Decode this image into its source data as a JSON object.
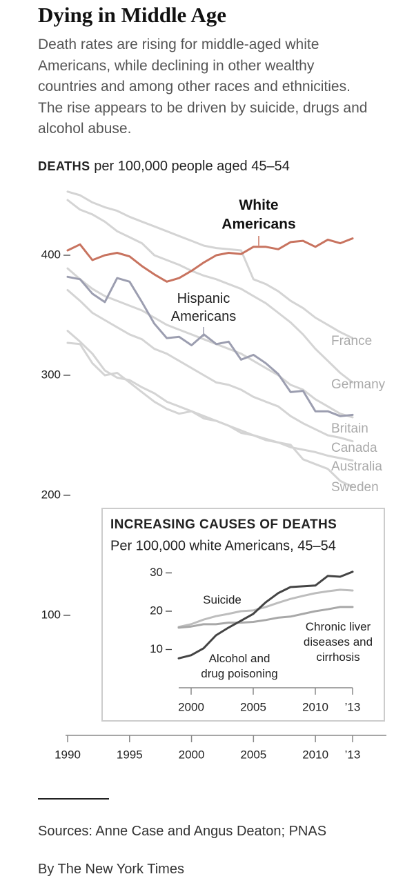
{
  "chart_data": [
    {
      "type": "line",
      "title": "Dying in Middle Age",
      "subtitle": "Death rates are rising for middle-aged white Americans, while declining in other wealthy countries and among other races and ethnicities. The rise appears to be driven by suicide, drugs and alcohol abuse.",
      "unit_label": "DEATHS",
      "unit_desc": "per 100,000 people aged 45–54",
      "x": [
        1990,
        1991,
        1992,
        1993,
        1994,
        1995,
        1996,
        1997,
        1998,
        1999,
        2000,
        2001,
        2002,
        2003,
        2004,
        2005,
        2006,
        2007,
        2008,
        2009,
        2010,
        2011,
        2012,
        2013
      ],
      "xlim": [
        1990,
        2013
      ],
      "xticks": [
        1990,
        1995,
        2000,
        2005,
        2010,
        {
          "value": 2013,
          "label": "’13"
        }
      ],
      "ylim": [
        0,
        460
      ],
      "yticks": [
        100,
        200,
        300,
        400
      ],
      "series": [
        {
          "name": "France",
          "color": "#d4d4d4",
          "values": [
            453,
            450,
            444,
            440,
            437,
            432,
            428,
            424,
            420,
            416,
            412,
            408,
            406,
            405,
            404,
            380,
            376,
            370,
            362,
            356,
            348,
            342,
            336,
            331
          ]
        },
        {
          "name": "Germany",
          "color": "#d4d4d4",
          "values": [
            446,
            438,
            434,
            428,
            420,
            415,
            410,
            400,
            396,
            392,
            387,
            383,
            380,
            376,
            372,
            366,
            360,
            352,
            344,
            334,
            322,
            312,
            302,
            294
          ]
        },
        {
          "name": "Britain",
          "color": "#d4d4d4",
          "values": [
            389,
            380,
            372,
            366,
            362,
            358,
            354,
            348,
            342,
            338,
            334,
            330,
            326,
            322,
            318,
            312,
            306,
            300,
            292,
            288,
            280,
            274,
            268,
            265
          ]
        },
        {
          "name": "Canada",
          "color": "#d4d4d4",
          "values": [
            371,
            362,
            352,
            346,
            340,
            334,
            330,
            322,
            318,
            312,
            306,
            300,
            294,
            292,
            288,
            282,
            278,
            274,
            266,
            260,
            255,
            250,
            248,
            245
          ]
        },
        {
          "name": "Australia",
          "color": "#d4d4d4",
          "values": [
            337,
            328,
            318,
            304,
            298,
            296,
            290,
            285,
            278,
            274,
            270,
            266,
            262,
            258,
            254,
            250,
            246,
            244,
            240,
            238,
            236,
            233,
            231,
            229
          ]
        },
        {
          "name": "Sweden",
          "color": "#d4d4d4",
          "values": [
            327,
            326,
            310,
            300,
            302,
            294,
            286,
            278,
            272,
            268,
            270,
            264,
            262,
            258,
            252,
            250,
            247,
            244,
            242,
            230,
            226,
            222,
            212,
            207
          ]
        },
        {
          "name": "Hispanic\nAmericans",
          "color": "#9c9eb0",
          "values": [
            382,
            380,
            368,
            361,
            381,
            378,
            361,
            343,
            331,
            332,
            325,
            334,
            326,
            328,
            313,
            317,
            310,
            301,
            286,
            287,
            270,
            270,
            266,
            267
          ]
        },
        {
          "name": "White\nAmericans",
          "color": "#c8735f",
          "values": [
            404,
            409,
            396,
            400,
            402,
            399,
            391,
            384,
            378,
            381,
            387,
            394,
            400,
            402,
            401,
            407,
            407,
            405,
            411,
            412,
            407,
            413,
            410,
            414
          ]
        }
      ]
    },
    {
      "type": "line",
      "title": "INCREASING CAUSES OF DEATHS",
      "subtitle": "Per 100,000 white Americans, 45–54",
      "x": [
        1999,
        2000,
        2001,
        2002,
        2003,
        2004,
        2005,
        2006,
        2007,
        2008,
        2009,
        2010,
        2011,
        2012,
        2013
      ],
      "xlim": [
        1999,
        2013
      ],
      "xticks": [
        2000,
        2005,
        2010,
        {
          "value": 2013,
          "label": "’13"
        }
      ],
      "ylim": [
        0,
        32
      ],
      "yticks": [
        10,
        20,
        30
      ],
      "series": [
        {
          "name": "Suicide",
          "color": "#bdbdbd",
          "values": [
            15.9,
            16.6,
            17.8,
            18.7,
            19.3,
            20,
            20.2,
            21.1,
            22.2,
            23.2,
            24,
            24.7,
            25.2,
            25.6,
            25.4
          ]
        },
        {
          "name": "Chronic liver\ndiseases and\ncirrhosis",
          "color": "#a8a8a8",
          "values": [
            15.7,
            16,
            16.6,
            16.6,
            17,
            17,
            17.2,
            17.7,
            18.3,
            18.6,
            19.3,
            20,
            20.5,
            21.1,
            21.1
          ]
        },
        {
          "name": "Alcohol and\ndrug poisoning",
          "color": "#444444",
          "values": [
            7.7,
            8.5,
            10.3,
            13.7,
            15.7,
            17.5,
            19.3,
            22.3,
            24.7,
            26.3,
            26.5,
            26.7,
            29.2,
            29,
            30.3
          ]
        }
      ]
    }
  ],
  "footer": {
    "sources": "Sources: Anne Case and Angus Deaton; PNAS",
    "credit": "By The New York Times"
  }
}
